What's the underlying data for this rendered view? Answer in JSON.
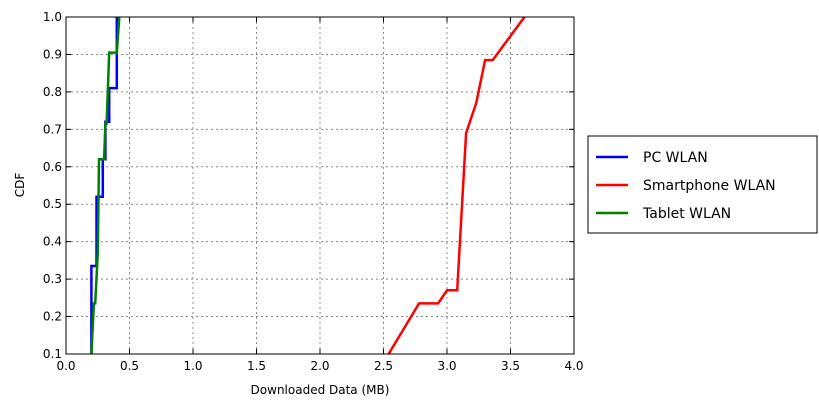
{
  "chart_data": {
    "type": "line",
    "title": "",
    "xlabel": "Downloaded Data (MB)",
    "ylabel": "CDF",
    "xlim": [
      0.0,
      4.0
    ],
    "ylim": [
      0.1,
      1.0
    ],
    "x_ticks": [
      0.0,
      0.5,
      1.0,
      1.5,
      2.0,
      2.5,
      3.0,
      3.5,
      4.0
    ],
    "x_tick_labels": [
      "0.0",
      "0.5",
      "1.0",
      "1.5",
      "2.0",
      "2.5",
      "3.0",
      "3.5",
      "4.0"
    ],
    "y_ticks": [
      0.1,
      0.2,
      0.3,
      0.4,
      0.5,
      0.6,
      0.7,
      0.8,
      0.9,
      1.0
    ],
    "y_tick_labels": [
      "0.1",
      "0.2",
      "0.3",
      "0.4",
      "0.5",
      "0.6",
      "0.7",
      "0.8",
      "0.9",
      "1.0"
    ],
    "grid": true,
    "legend_position": "outside-right",
    "series": [
      {
        "name": "PC WLAN",
        "color": "#0000ff",
        "points": [
          [
            0.2,
            0.1
          ],
          [
            0.2,
            0.335
          ],
          [
            0.24,
            0.335
          ],
          [
            0.24,
            0.52
          ],
          [
            0.29,
            0.52
          ],
          [
            0.29,
            0.62
          ],
          [
            0.31,
            0.62
          ],
          [
            0.31,
            0.72
          ],
          [
            0.34,
            0.72
          ],
          [
            0.34,
            0.81
          ],
          [
            0.4,
            0.81
          ],
          [
            0.4,
            1.0
          ]
        ]
      },
      {
        "name": "Smartphone WLAN",
        "color": "#ff0000",
        "points": [
          [
            2.54,
            0.1
          ],
          [
            2.78,
            0.235
          ],
          [
            2.93,
            0.235
          ],
          [
            3.0,
            0.27
          ],
          [
            3.08,
            0.27
          ],
          [
            3.15,
            0.69
          ],
          [
            3.23,
            0.77
          ],
          [
            3.3,
            0.885
          ],
          [
            3.36,
            0.885
          ],
          [
            3.61,
            1.0
          ]
        ]
      },
      {
        "name": "Tablet WLAN",
        "color": "#008000",
        "points": [
          [
            0.2,
            0.1
          ],
          [
            0.22,
            0.235
          ],
          [
            0.23,
            0.235
          ],
          [
            0.25,
            0.37
          ],
          [
            0.26,
            0.62
          ],
          [
            0.3,
            0.62
          ],
          [
            0.31,
            0.715
          ],
          [
            0.32,
            0.715
          ],
          [
            0.34,
            0.905
          ],
          [
            0.4,
            0.905
          ],
          [
            0.42,
            1.0
          ]
        ]
      }
    ]
  }
}
